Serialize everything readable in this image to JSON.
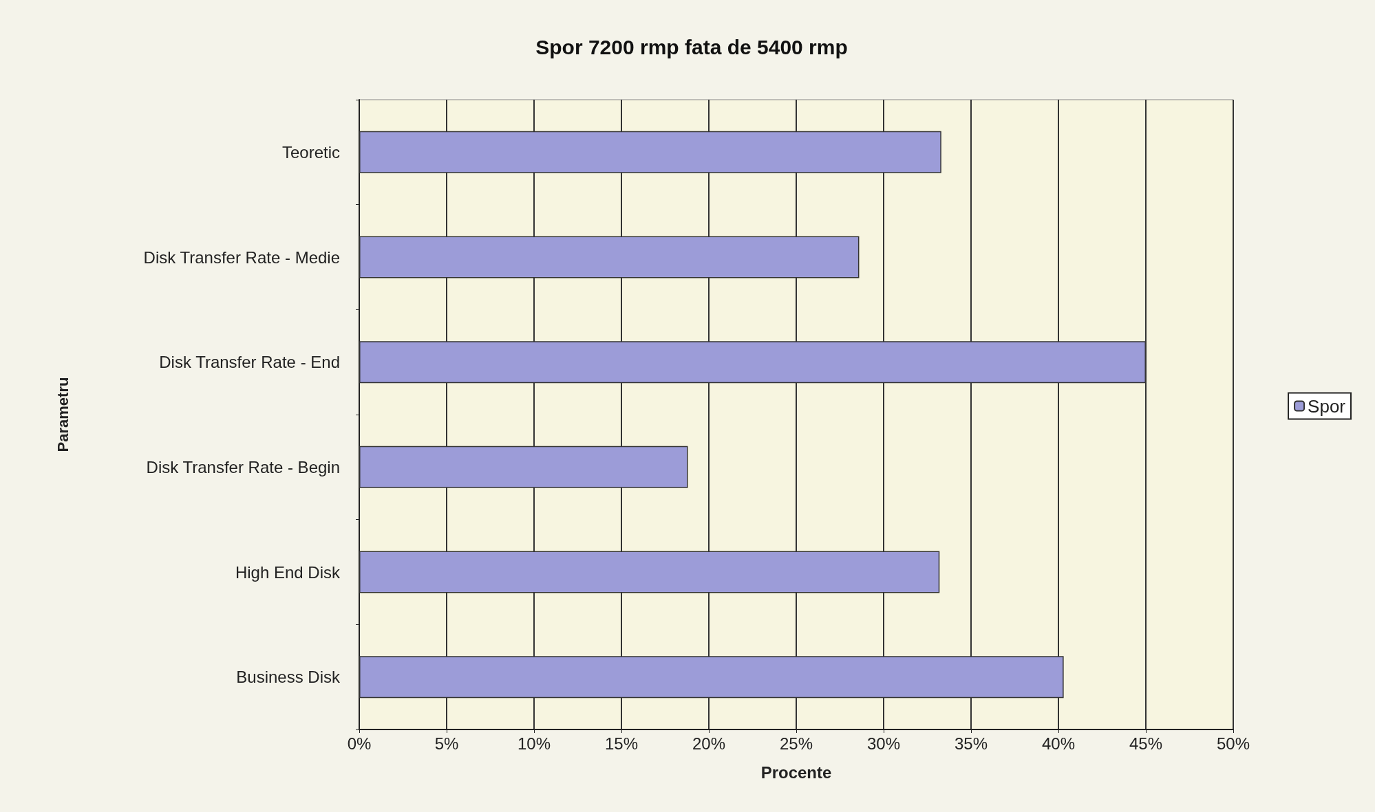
{
  "chart_data": {
    "type": "bar",
    "orientation": "horizontal",
    "title": "Spor 7200 rmp fata de 5400 rmp",
    "xlabel": "Procente",
    "ylabel": "Parametru",
    "categories": [
      "Teoretic",
      "Disk Transfer Rate - Medie",
      "Disk Transfer Rate - End",
      "Disk Transfer Rate - Begin",
      "High End Disk",
      "Business Disk"
    ],
    "series": [
      {
        "name": "Spor",
        "color": "#9c9cd8",
        "values": [
          33.3,
          28.6,
          45.0,
          18.8,
          33.2,
          40.3
        ]
      }
    ],
    "xlim": [
      0,
      50
    ],
    "xticks": [
      {
        "value": 0,
        "label": "0%"
      },
      {
        "value": 5,
        "label": "5%"
      },
      {
        "value": 10,
        "label": "10%"
      },
      {
        "value": 15,
        "label": "15%"
      },
      {
        "value": 20,
        "label": "20%"
      },
      {
        "value": 25,
        "label": "25%"
      },
      {
        "value": 30,
        "label": "30%"
      },
      {
        "value": 35,
        "label": "35%"
      },
      {
        "value": 40,
        "label": "40%"
      },
      {
        "value": 45,
        "label": "45%"
      },
      {
        "value": 50,
        "label": "50%"
      }
    ],
    "grid": "x",
    "legend": "right"
  }
}
